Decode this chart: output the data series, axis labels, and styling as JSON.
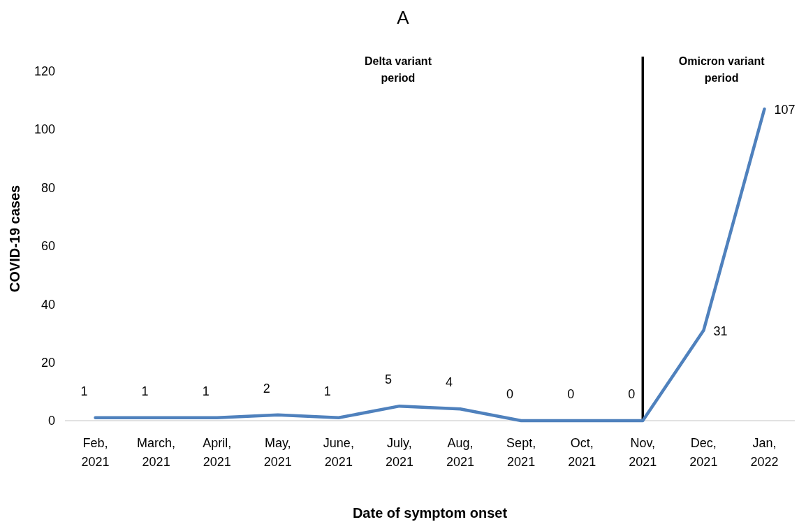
{
  "chart_data": {
    "type": "line",
    "title": "A",
    "xlabel": "Date of symptom onset",
    "ylabel": "COVID-19 cases",
    "categories": [
      "Feb, 2021",
      "March, 2021",
      "April, 2021",
      "May, 2021",
      "June, 2021",
      "July, 2021",
      "Aug, 2021",
      "Sept, 2021",
      "Oct, 2021",
      "Nov, 2021",
      "Dec, 2021",
      "Jan, 2022"
    ],
    "series": [
      {
        "color": "#4f81bd",
        "values": [
          1,
          1,
          1,
          2,
          1,
          5,
          4,
          0,
          0,
          0,
          31,
          107
        ]
      }
    ],
    "ylim": [
      0,
      125
    ],
    "yticks": [
      0,
      20,
      40,
      60,
      80,
      100,
      120
    ],
    "data_labels": true,
    "grid": false,
    "marker": "none",
    "line_style": "solid",
    "ref_lines": [
      {
        "axis": "x",
        "value": "Nov, 2021",
        "color": "#000000"
      }
    ],
    "annotations": [
      "Delta variant period",
      "Omicron variant period"
    ]
  }
}
